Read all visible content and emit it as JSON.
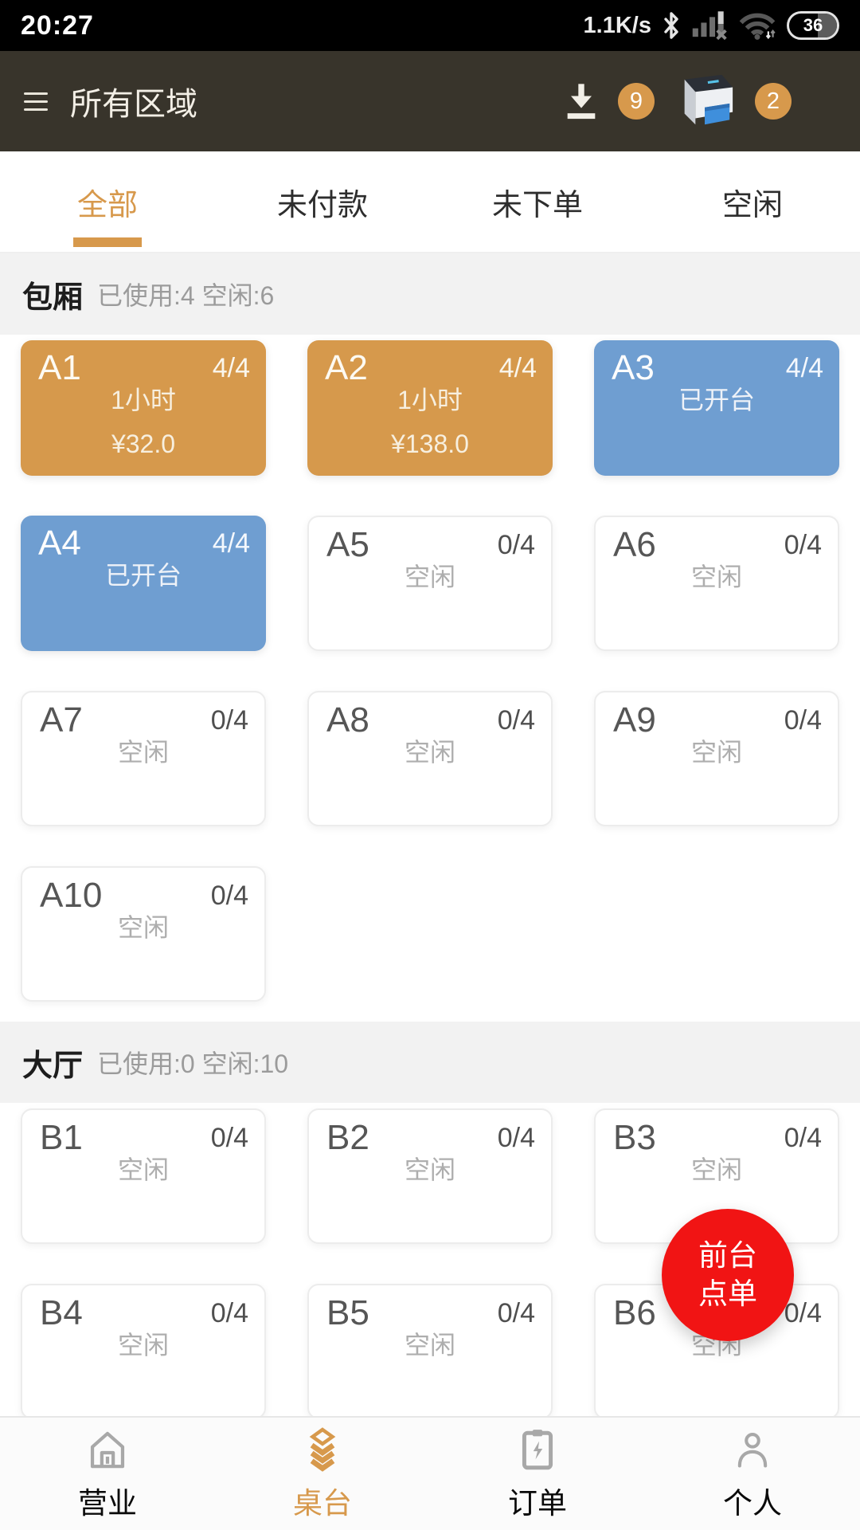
{
  "status_bar": {
    "time": "20:27",
    "net_speed": "1.1K/s",
    "battery_level": "36"
  },
  "header": {
    "title": "所有区域",
    "download_badge": "9",
    "printer_badge": "2"
  },
  "tabs": [
    {
      "label": "全部",
      "active": true
    },
    {
      "label": "未付款",
      "active": false
    },
    {
      "label": "未下单",
      "active": false
    },
    {
      "label": "空闲",
      "active": false
    }
  ],
  "sections": [
    {
      "name": "包厢",
      "stats": "已使用:4 空闲:6",
      "tables": [
        {
          "name": "A1",
          "capacity": "4/4",
          "state": "occupied",
          "lines": [
            "1小时",
            "¥32.0"
          ]
        },
        {
          "name": "A2",
          "capacity": "4/4",
          "state": "occupied",
          "lines": [
            "1小时",
            "¥138.0"
          ]
        },
        {
          "name": "A3",
          "capacity": "4/4",
          "state": "opened",
          "lines": [
            "已开台"
          ]
        },
        {
          "name": "A4",
          "capacity": "4/4",
          "state": "opened",
          "lines": [
            "已开台"
          ]
        },
        {
          "name": "A5",
          "capacity": "0/4",
          "state": "idle",
          "lines": [
            "空闲"
          ]
        },
        {
          "name": "A6",
          "capacity": "0/4",
          "state": "idle",
          "lines": [
            "空闲"
          ]
        },
        {
          "name": "A7",
          "capacity": "0/4",
          "state": "idle",
          "lines": [
            "空闲"
          ]
        },
        {
          "name": "A8",
          "capacity": "0/4",
          "state": "idle",
          "lines": [
            "空闲"
          ]
        },
        {
          "name": "A9",
          "capacity": "0/4",
          "state": "idle",
          "lines": [
            "空闲"
          ]
        },
        {
          "name": "A10",
          "capacity": "0/4",
          "state": "idle",
          "lines": [
            "空闲"
          ]
        }
      ]
    },
    {
      "name": "大厅",
      "stats": "已使用:0 空闲:10",
      "tables": [
        {
          "name": "B1",
          "capacity": "0/4",
          "state": "idle",
          "lines": [
            "空闲"
          ]
        },
        {
          "name": "B2",
          "capacity": "0/4",
          "state": "idle",
          "lines": [
            "空闲"
          ]
        },
        {
          "name": "B3",
          "capacity": "0/4",
          "state": "idle",
          "lines": [
            "空闲"
          ]
        },
        {
          "name": "B4",
          "capacity": "0/4",
          "state": "idle",
          "lines": [
            "空闲"
          ]
        },
        {
          "name": "B5",
          "capacity": "0/4",
          "state": "idle",
          "lines": [
            "空闲"
          ]
        },
        {
          "name": "B6",
          "capacity": "0/4",
          "state": "idle",
          "lines": [
            "空闲"
          ]
        }
      ]
    }
  ],
  "fab": {
    "line1": "前台",
    "line2": "点单"
  },
  "bottom_nav": [
    {
      "label": "营业",
      "icon": "home-icon",
      "active": false
    },
    {
      "label": "桌台",
      "icon": "tables-icon",
      "active": true
    },
    {
      "label": "订单",
      "icon": "orders-icon",
      "active": false
    },
    {
      "label": "个人",
      "icon": "profile-icon",
      "active": false
    }
  ],
  "colors": {
    "accent_orange": "#d7994c",
    "table_occupied": "#d6994c",
    "table_opened": "#6f9ed1",
    "fab_red": "#f11414",
    "header_bg": "#38342b",
    "section_band": "#f2f2f2"
  }
}
